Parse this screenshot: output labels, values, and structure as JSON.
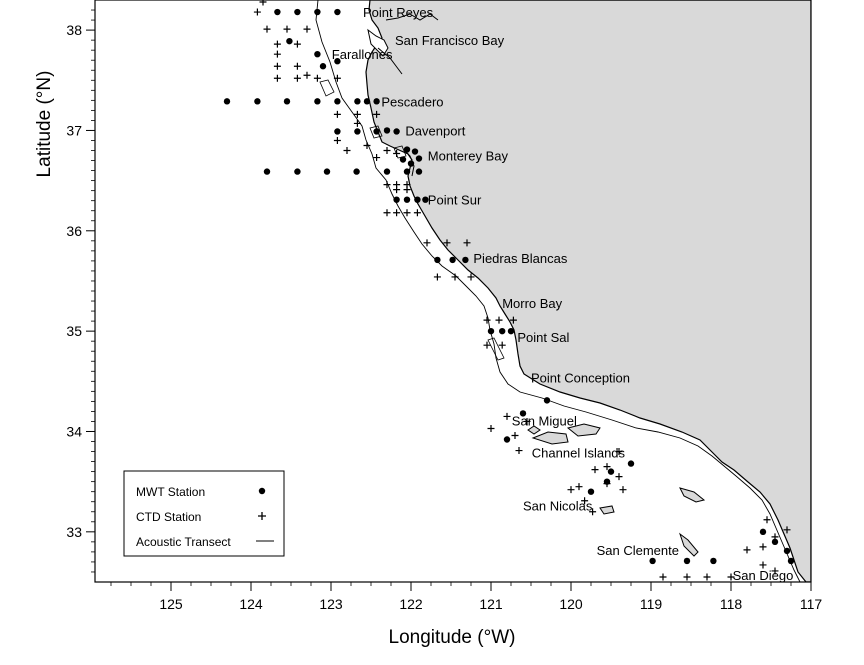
{
  "axes": {
    "xlabel": "Longitude (°W)",
    "ylabel": "Latitude (°N)",
    "x_range": [
      125.95,
      117
    ],
    "y_range": [
      32.5,
      38.3
    ],
    "x_ticks": [
      "125",
      "124",
      "123",
      "122",
      "121",
      "120",
      "119",
      "118",
      "117"
    ],
    "x_tick_values": [
      125,
      124,
      123,
      122,
      121,
      120,
      119,
      118,
      117
    ],
    "y_ticks": [
      "38",
      "37",
      "36",
      "35",
      "34",
      "33"
    ],
    "y_tick_values": [
      38,
      37,
      36,
      35,
      34,
      33
    ]
  },
  "places": [
    {
      "name": "Point Reyes",
      "lon": 122.6,
      "lat": 38.18
    },
    {
      "name": "San Francisco Bay",
      "lon": 122.2,
      "lat": 37.9
    },
    {
      "name": "Farallones",
      "lon": 122.99,
      "lat": 37.76
    },
    {
      "name": "Pescadero",
      "lon": 122.37,
      "lat": 37.29
    },
    {
      "name": "Davenport",
      "lon": 122.07,
      "lat": 37.0
    },
    {
      "name": "Monterey Bay",
      "lon": 121.79,
      "lat": 36.75
    },
    {
      "name": "Point Sur",
      "lon": 121.79,
      "lat": 36.31
    },
    {
      "name": "Piedras Blancas",
      "lon": 121.22,
      "lat": 35.73
    },
    {
      "name": "Morro Bay",
      "lon": 120.86,
      "lat": 35.28
    },
    {
      "name": "Point Sal",
      "lon": 120.67,
      "lat": 34.94
    },
    {
      "name": "Point Conception",
      "lon": 120.5,
      "lat": 34.54
    },
    {
      "name": "San Miguel",
      "lon": 120.74,
      "lat": 34.11
    },
    {
      "name": "Channel Islands",
      "lon": 120.49,
      "lat": 33.79
    },
    {
      "name": "San Nicolas",
      "lon": 120.6,
      "lat": 33.26
    },
    {
      "name": "San Clemente",
      "lon": 119.68,
      "lat": 32.82
    },
    {
      "name": "San Diego",
      "lon": 117.98,
      "lat": 32.57
    }
  ],
  "legend": {
    "mwt": "MWT Station",
    "ctd": "CTD Station",
    "transect": "Acoustic Transect"
  },
  "mwt_stations": [
    [
      123.67,
      38.18
    ],
    [
      123.42,
      38.18
    ],
    [
      123.17,
      38.18
    ],
    [
      122.92,
      38.18
    ],
    [
      123.52,
      37.89
    ],
    [
      123.17,
      37.76
    ],
    [
      122.92,
      37.69
    ],
    [
      123.1,
      37.64
    ],
    [
      124.3,
      37.29
    ],
    [
      123.92,
      37.29
    ],
    [
      123.55,
      37.29
    ],
    [
      123.17,
      37.29
    ],
    [
      122.92,
      37.29
    ],
    [
      122.67,
      37.29
    ],
    [
      122.55,
      37.29
    ],
    [
      122.43,
      37.29
    ],
    [
      122.92,
      36.99
    ],
    [
      122.67,
      36.99
    ],
    [
      122.43,
      36.99
    ],
    [
      122.18,
      36.99
    ],
    [
      122.3,
      37.0
    ],
    [
      122.05,
      36.81
    ],
    [
      121.95,
      36.79
    ],
    [
      121.9,
      36.72
    ],
    [
      122.1,
      36.71
    ],
    [
      122.0,
      36.67
    ],
    [
      123.8,
      36.59
    ],
    [
      123.42,
      36.59
    ],
    [
      123.05,
      36.59
    ],
    [
      122.68,
      36.59
    ],
    [
      122.3,
      36.59
    ],
    [
      122.05,
      36.59
    ],
    [
      121.9,
      36.59
    ],
    [
      122.18,
      36.31
    ],
    [
      122.05,
      36.31
    ],
    [
      121.92,
      36.31
    ],
    [
      121.82,
      36.31
    ],
    [
      121.67,
      35.71
    ],
    [
      121.48,
      35.71
    ],
    [
      121.32,
      35.71
    ],
    [
      121.0,
      35.0
    ],
    [
      120.86,
      35.0
    ],
    [
      120.75,
      35.0
    ],
    [
      120.3,
      34.31
    ],
    [
      120.6,
      34.18
    ],
    [
      120.8,
      33.92
    ],
    [
      119.5,
      33.6
    ],
    [
      119.75,
      33.4
    ],
    [
      119.55,
      33.5
    ],
    [
      119.25,
      33.68
    ],
    [
      118.98,
      32.71
    ],
    [
      118.55,
      32.71
    ],
    [
      118.22,
      32.71
    ],
    [
      117.6,
      33.0
    ],
    [
      117.45,
      32.9
    ],
    [
      117.3,
      32.81
    ],
    [
      117.25,
      32.71
    ]
  ],
  "ctd_stations": [
    [
      123.67,
      38.41
    ],
    [
      123.42,
      38.41
    ],
    [
      123.17,
      38.41
    ],
    [
      122.92,
      38.41
    ],
    [
      123.85,
      38.28
    ],
    [
      123.92,
      38.18
    ],
    [
      123.8,
      38.01
    ],
    [
      123.55,
      38.01
    ],
    [
      123.3,
      38.01
    ],
    [
      123.67,
      37.86
    ],
    [
      123.42,
      37.86
    ],
    [
      123.67,
      37.76
    ],
    [
      123.42,
      37.64
    ],
    [
      123.3,
      37.55
    ],
    [
      123.67,
      37.64
    ],
    [
      123.67,
      37.52
    ],
    [
      123.42,
      37.52
    ],
    [
      123.17,
      37.52
    ],
    [
      122.92,
      37.52
    ],
    [
      122.92,
      37.16
    ],
    [
      122.67,
      37.16
    ],
    [
      122.43,
      37.16
    ],
    [
      122.67,
      37.07
    ],
    [
      122.92,
      36.9
    ],
    [
      122.8,
      36.8
    ],
    [
      122.55,
      36.85
    ],
    [
      122.3,
      36.8
    ],
    [
      122.18,
      36.77
    ],
    [
      122.43,
      36.73
    ],
    [
      122.3,
      36.46
    ],
    [
      122.18,
      36.46
    ],
    [
      122.05,
      36.46
    ],
    [
      122.18,
      36.41
    ],
    [
      122.05,
      36.41
    ],
    [
      122.3,
      36.18
    ],
    [
      122.18,
      36.18
    ],
    [
      122.05,
      36.18
    ],
    [
      121.92,
      36.18
    ],
    [
      121.8,
      35.88
    ],
    [
      121.55,
      35.88
    ],
    [
      121.3,
      35.88
    ],
    [
      121.67,
      35.54
    ],
    [
      121.45,
      35.54
    ],
    [
      121.25,
      35.54
    ],
    [
      121.05,
      35.11
    ],
    [
      120.9,
      35.11
    ],
    [
      120.72,
      35.11
    ],
    [
      121.05,
      34.86
    ],
    [
      120.86,
      34.86
    ],
    [
      120.8,
      34.15
    ],
    [
      120.55,
      34.1
    ],
    [
      121.0,
      34.03
    ],
    [
      120.7,
      33.96
    ],
    [
      120.65,
      33.81
    ],
    [
      119.4,
      33.8
    ],
    [
      119.55,
      33.65
    ],
    [
      119.7,
      33.62
    ],
    [
      119.4,
      33.55
    ],
    [
      119.9,
      33.45
    ],
    [
      119.55,
      33.48
    ],
    [
      119.35,
      33.42
    ],
    [
      120.0,
      33.42
    ],
    [
      119.83,
      33.31
    ],
    [
      119.73,
      33.2
    ],
    [
      118.85,
      32.55
    ],
    [
      118.55,
      32.55
    ],
    [
      118.3,
      32.55
    ],
    [
      118.0,
      32.55
    ],
    [
      117.8,
      32.82
    ],
    [
      117.6,
      32.85
    ],
    [
      117.45,
      32.95
    ],
    [
      117.55,
      33.12
    ],
    [
      117.3,
      33.02
    ],
    [
      117.6,
      32.67
    ],
    [
      117.45,
      32.61
    ]
  ],
  "colors": {
    "land": "#d9d9d9",
    "ink": "#000000",
    "sea": "#ffffff"
  }
}
